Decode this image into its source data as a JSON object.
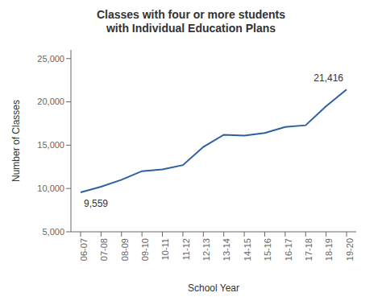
{
  "chart_data": {
    "type": "line",
    "title": "Classes with four or more students\nwith Individual Education Plans",
    "x_label": "School Year",
    "y_label": "Number of Classes",
    "categories": [
      "06-07",
      "07-08",
      "08-09",
      "09-10",
      "10-11",
      "11-12",
      "12-13",
      "13-14",
      "14-15",
      "15-16",
      "16-17",
      "17-18",
      "18-19",
      "19-20"
    ],
    "values": [
      9559,
      10200,
      11000,
      12000,
      12200,
      12700,
      14800,
      16200,
      16100,
      16400,
      17100,
      17300,
      19500,
      21416
    ],
    "color": "#2E5FA3",
    "ylim": [
      5000,
      26000
    ],
    "yticks": [
      {
        "value": 5000,
        "label": "5,000"
      },
      {
        "value": 10000,
        "label": "10,000"
      },
      {
        "value": 15000,
        "label": "15,000"
      },
      {
        "value": 20000,
        "label": "20,000"
      },
      {
        "value": 25000,
        "label": "25,000"
      }
    ],
    "grid": false,
    "annotations": [
      {
        "text": "9,559",
        "x": "06-07",
        "y": 9559
      },
      {
        "text": "21,416",
        "x": "19-20",
        "y": 21416
      }
    ]
  }
}
